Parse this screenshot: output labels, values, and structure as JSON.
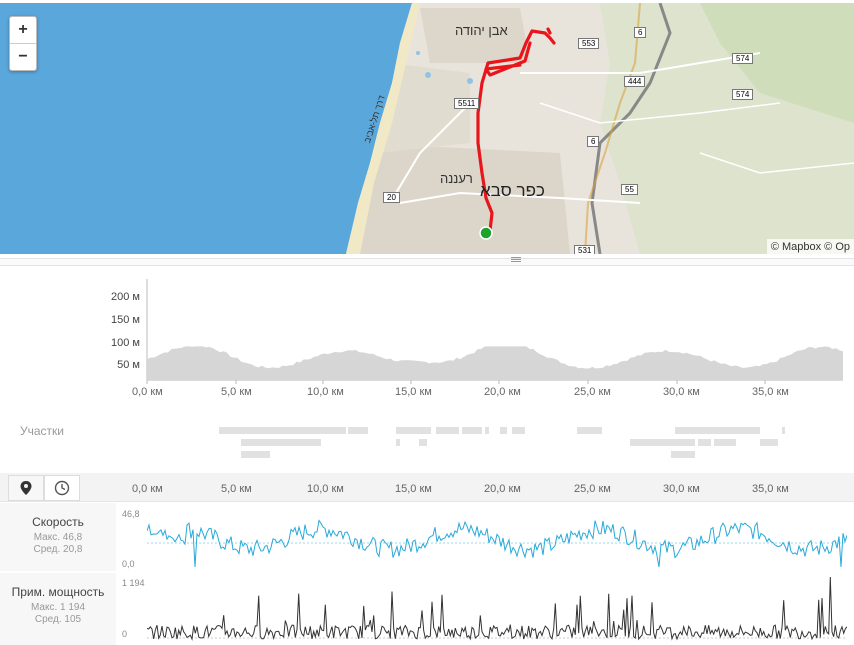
{
  "map": {
    "zoom_in": "+",
    "zoom_out": "−",
    "attribution": "© Mapbox © Op",
    "places": [
      {
        "name": "אבן יהודה"
      },
      {
        "name": "רעננה"
      },
      {
        "name": "כפר סבא"
      },
      {
        "name": "דרך תל-אביב"
      }
    ],
    "road_shields": [
      "553",
      "6",
      "444",
      "574",
      "574",
      "5511",
      "6",
      "20",
      "55",
      "531"
    ]
  },
  "elevation": {
    "y_ticks": [
      "200 м",
      "150 м",
      "100 м",
      "50 м"
    ],
    "x_ticks": [
      "0,0 км",
      "5,0 км",
      "10,0 км",
      "15,0 км",
      "20,0 км",
      "25,0 км",
      "30,0 км",
      "35,0 км"
    ]
  },
  "segments_label": "Участки",
  "toolbar": {
    "distance_icon": "map-pin-icon",
    "time_icon": "clock-icon",
    "x_ticks": [
      "0,0 км",
      "5,0 км",
      "10,0 км",
      "15,0 км",
      "20,0 км",
      "25,0 км",
      "30,0 км",
      "35,0 км"
    ]
  },
  "speed": {
    "title": "Скорость",
    "max_label": "Макс. 46,8",
    "avg_label": "Сред. 20,8",
    "axis_max": "46,8",
    "axis_min": "0,0",
    "color": "#29a9d9"
  },
  "power": {
    "title": "Прим. мощность",
    "max_label": "Макс. 1 194",
    "avg_label": "Сред. 105",
    "axis_max": "1 194",
    "axis_min": "0",
    "color": "#333333"
  },
  "colors": {
    "sea": "#5aa7dc",
    "route": "#e8151b",
    "start": "#1ea32a"
  }
}
